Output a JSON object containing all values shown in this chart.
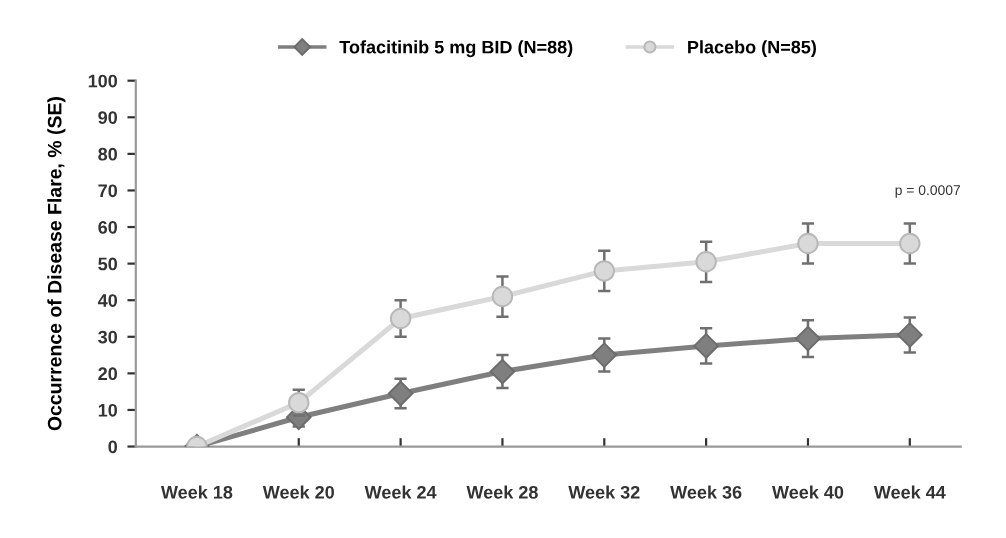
{
  "chart_data": {
    "type": "line",
    "ylabel": "Occurrence of Disease Flare, % (SE)",
    "categories": [
      "Week 18",
      "Week 20",
      "Week 24",
      "Week 28",
      "Week 32",
      "Week 36",
      "Week 40",
      "Week 44"
    ],
    "ylim": [
      0,
      100
    ],
    "yticks": [
      0,
      10,
      20,
      30,
      40,
      50,
      60,
      70,
      80,
      90,
      100
    ],
    "grid": false,
    "legend": "top",
    "series": [
      {
        "name": "Tofacitinib 5 mg BID (N=88)",
        "color": "#7f7f7f",
        "marker": "diamond",
        "values": [
          0,
          8,
          14.5,
          20.5,
          25,
          27.5,
          29.5,
          30.5
        ],
        "errors": [
          null,
          2.5,
          4,
          4.5,
          4.5,
          4.8,
          5,
          4.8
        ]
      },
      {
        "name": "Placebo (N=85)",
        "color": "#d9d9d9",
        "marker": "circle",
        "values": [
          0,
          12,
          35,
          41,
          48,
          50.5,
          55.5,
          55.5
        ],
        "errors": [
          null,
          3.5,
          5,
          5.5,
          5.5,
          5.5,
          5.5,
          5.5
        ]
      }
    ],
    "annotations": [
      "p = 0.0007"
    ]
  }
}
